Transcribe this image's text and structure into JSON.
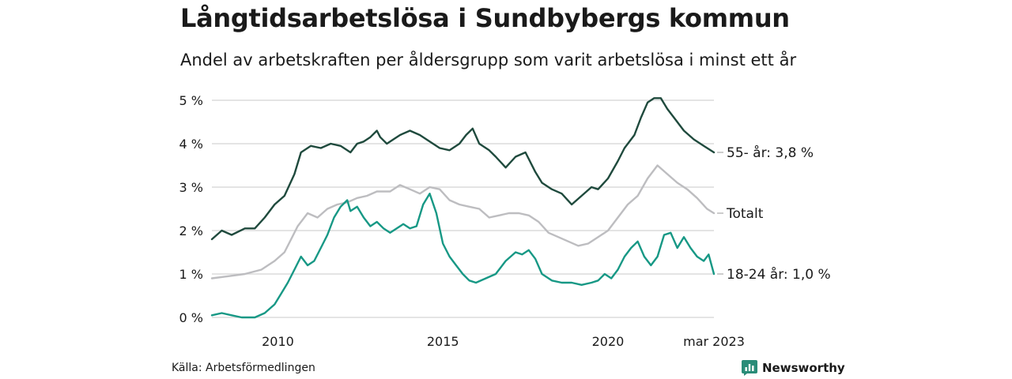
{
  "title": "Långtidsarbetslösa i Sundbybergs kommun",
  "subtitle": "Andel av arbetskraften per åldersgrupp som varit arbetslösa i minst ett år",
  "source": "Källa: Arbetsförmedlingen",
  "brand": "Newsworthy",
  "colors": {
    "s55": "#1f4a3d",
    "total": "#bdbdc0",
    "s1824": "#179885",
    "grid": "#dcdcdc",
    "brand": "#2a8c78"
  },
  "chart_data": {
    "type": "line",
    "title": "Långtidsarbetslösa i Sundbybergs kommun",
    "subtitle": "Andel av arbetskraften per åldersgrupp som varit arbetslösa i minst ett år",
    "xlabel": "",
    "ylabel": "",
    "x_range": [
      2008.0,
      2023.21
    ],
    "ylim": [
      0,
      5
    ],
    "y_ticks": [
      0,
      1,
      2,
      3,
      4,
      5
    ],
    "y_tick_labels": [
      "0 %",
      "1 %",
      "2 %",
      "3 %",
      "4 %",
      "5 %"
    ],
    "x_ticks": [
      2010,
      2015,
      2020,
      2023.21
    ],
    "x_tick_labels": [
      "2010",
      "2015",
      "2020",
      "mar 2023"
    ],
    "grid": true,
    "series": [
      {
        "name": "55- år",
        "end_label": "55- år: 3,8 %",
        "color": "#1f4a3d",
        "points": [
          [
            2008.0,
            1.8
          ],
          [
            2008.3,
            2.0
          ],
          [
            2008.6,
            1.9
          ],
          [
            2009.0,
            2.05
          ],
          [
            2009.3,
            2.05
          ],
          [
            2009.6,
            2.3
          ],
          [
            2009.9,
            2.6
          ],
          [
            2010.2,
            2.8
          ],
          [
            2010.5,
            3.3
          ],
          [
            2010.7,
            3.8
          ],
          [
            2011.0,
            3.95
          ],
          [
            2011.3,
            3.9
          ],
          [
            2011.6,
            4.0
          ],
          [
            2011.9,
            3.95
          ],
          [
            2012.2,
            3.8
          ],
          [
            2012.4,
            4.0
          ],
          [
            2012.6,
            4.05
          ],
          [
            2012.8,
            4.15
          ],
          [
            2013.0,
            4.3
          ],
          [
            2013.1,
            4.15
          ],
          [
            2013.3,
            4.0
          ],
          [
            2013.5,
            4.1
          ],
          [
            2013.7,
            4.2
          ],
          [
            2014.0,
            4.3
          ],
          [
            2014.3,
            4.2
          ],
          [
            2014.6,
            4.05
          ],
          [
            2014.9,
            3.9
          ],
          [
            2015.2,
            3.85
          ],
          [
            2015.5,
            4.0
          ],
          [
            2015.7,
            4.2
          ],
          [
            2015.9,
            4.35
          ],
          [
            2016.1,
            4.0
          ],
          [
            2016.4,
            3.85
          ],
          [
            2016.6,
            3.7
          ],
          [
            2016.9,
            3.45
          ],
          [
            2017.2,
            3.7
          ],
          [
            2017.5,
            3.8
          ],
          [
            2017.8,
            3.35
          ],
          [
            2018.0,
            3.1
          ],
          [
            2018.3,
            2.95
          ],
          [
            2018.6,
            2.85
          ],
          [
            2018.9,
            2.6
          ],
          [
            2019.2,
            2.8
          ],
          [
            2019.5,
            3.0
          ],
          [
            2019.7,
            2.95
          ],
          [
            2020.0,
            3.2
          ],
          [
            2020.3,
            3.6
          ],
          [
            2020.5,
            3.9
          ],
          [
            2020.8,
            4.2
          ],
          [
            2021.0,
            4.6
          ],
          [
            2021.2,
            4.95
          ],
          [
            2021.4,
            5.05
          ],
          [
            2021.6,
            5.05
          ],
          [
            2021.8,
            4.8
          ],
          [
            2022.0,
            4.6
          ],
          [
            2022.3,
            4.3
          ],
          [
            2022.6,
            4.1
          ],
          [
            2022.9,
            3.95
          ],
          [
            2023.21,
            3.8
          ]
        ]
      },
      {
        "name": "Totalt",
        "end_label": "Totalt",
        "color": "#bdbdc0",
        "points": [
          [
            2008.0,
            0.9
          ],
          [
            2008.5,
            0.95
          ],
          [
            2009.0,
            1.0
          ],
          [
            2009.5,
            1.1
          ],
          [
            2009.9,
            1.3
          ],
          [
            2010.2,
            1.5
          ],
          [
            2010.4,
            1.8
          ],
          [
            2010.6,
            2.1
          ],
          [
            2010.9,
            2.4
          ],
          [
            2011.2,
            2.3
          ],
          [
            2011.5,
            2.5
          ],
          [
            2011.8,
            2.6
          ],
          [
            2012.1,
            2.65
          ],
          [
            2012.4,
            2.75
          ],
          [
            2012.7,
            2.8
          ],
          [
            2013.0,
            2.9
          ],
          [
            2013.4,
            2.9
          ],
          [
            2013.7,
            3.05
          ],
          [
            2014.0,
            2.95
          ],
          [
            2014.3,
            2.85
          ],
          [
            2014.6,
            3.0
          ],
          [
            2014.9,
            2.95
          ],
          [
            2015.2,
            2.7
          ],
          [
            2015.5,
            2.6
          ],
          [
            2015.8,
            2.55
          ],
          [
            2016.1,
            2.5
          ],
          [
            2016.4,
            2.3
          ],
          [
            2016.7,
            2.35
          ],
          [
            2017.0,
            2.4
          ],
          [
            2017.3,
            2.4
          ],
          [
            2017.6,
            2.35
          ],
          [
            2017.9,
            2.2
          ],
          [
            2018.2,
            1.95
          ],
          [
            2018.5,
            1.85
          ],
          [
            2018.8,
            1.75
          ],
          [
            2019.1,
            1.65
          ],
          [
            2019.4,
            1.7
          ],
          [
            2019.7,
            1.85
          ],
          [
            2020.0,
            2.0
          ],
          [
            2020.3,
            2.3
          ],
          [
            2020.6,
            2.6
          ],
          [
            2020.9,
            2.8
          ],
          [
            2021.2,
            3.2
          ],
          [
            2021.5,
            3.5
          ],
          [
            2021.8,
            3.3
          ],
          [
            2022.1,
            3.1
          ],
          [
            2022.4,
            2.95
          ],
          [
            2022.7,
            2.75
          ],
          [
            2023.0,
            2.5
          ],
          [
            2023.21,
            2.4
          ]
        ]
      },
      {
        "name": "18-24 år",
        "end_label": "18-24 år: 1,0 %",
        "color": "#179885",
        "points": [
          [
            2008.0,
            0.05
          ],
          [
            2008.3,
            0.1
          ],
          [
            2008.6,
            0.05
          ],
          [
            2008.9,
            0.0
          ],
          [
            2009.3,
            0.0
          ],
          [
            2009.6,
            0.1
          ],
          [
            2009.9,
            0.3
          ],
          [
            2010.1,
            0.55
          ],
          [
            2010.3,
            0.8
          ],
          [
            2010.5,
            1.1
          ],
          [
            2010.7,
            1.4
          ],
          [
            2010.9,
            1.2
          ],
          [
            2011.1,
            1.3
          ],
          [
            2011.3,
            1.6
          ],
          [
            2011.5,
            1.9
          ],
          [
            2011.7,
            2.3
          ],
          [
            2011.9,
            2.55
          ],
          [
            2012.1,
            2.7
          ],
          [
            2012.2,
            2.45
          ],
          [
            2012.4,
            2.55
          ],
          [
            2012.6,
            2.3
          ],
          [
            2012.8,
            2.1
          ],
          [
            2013.0,
            2.2
          ],
          [
            2013.2,
            2.05
          ],
          [
            2013.4,
            1.95
          ],
          [
            2013.6,
            2.05
          ],
          [
            2013.8,
            2.15
          ],
          [
            2014.0,
            2.05
          ],
          [
            2014.2,
            2.1
          ],
          [
            2014.4,
            2.6
          ],
          [
            2014.6,
            2.85
          ],
          [
            2014.8,
            2.4
          ],
          [
            2015.0,
            1.7
          ],
          [
            2015.2,
            1.4
          ],
          [
            2015.4,
            1.2
          ],
          [
            2015.6,
            1.0
          ],
          [
            2015.8,
            0.85
          ],
          [
            2016.0,
            0.8
          ],
          [
            2016.3,
            0.9
          ],
          [
            2016.6,
            1.0
          ],
          [
            2016.9,
            1.3
          ],
          [
            2017.2,
            1.5
          ],
          [
            2017.4,
            1.45
          ],
          [
            2017.6,
            1.55
          ],
          [
            2017.8,
            1.35
          ],
          [
            2018.0,
            1.0
          ],
          [
            2018.3,
            0.85
          ],
          [
            2018.6,
            0.8
          ],
          [
            2018.9,
            0.8
          ],
          [
            2019.2,
            0.75
          ],
          [
            2019.5,
            0.8
          ],
          [
            2019.7,
            0.85
          ],
          [
            2019.9,
            1.0
          ],
          [
            2020.1,
            0.9
          ],
          [
            2020.3,
            1.1
          ],
          [
            2020.5,
            1.4
          ],
          [
            2020.7,
            1.6
          ],
          [
            2020.9,
            1.75
          ],
          [
            2021.1,
            1.4
          ],
          [
            2021.3,
            1.2
          ],
          [
            2021.5,
            1.4
          ],
          [
            2021.7,
            1.9
          ],
          [
            2021.9,
            1.95
          ],
          [
            2022.1,
            1.6
          ],
          [
            2022.3,
            1.85
          ],
          [
            2022.5,
            1.6
          ],
          [
            2022.7,
            1.4
          ],
          [
            2022.9,
            1.3
          ],
          [
            2023.05,
            1.45
          ],
          [
            2023.21,
            1.0
          ]
        ]
      }
    ]
  }
}
